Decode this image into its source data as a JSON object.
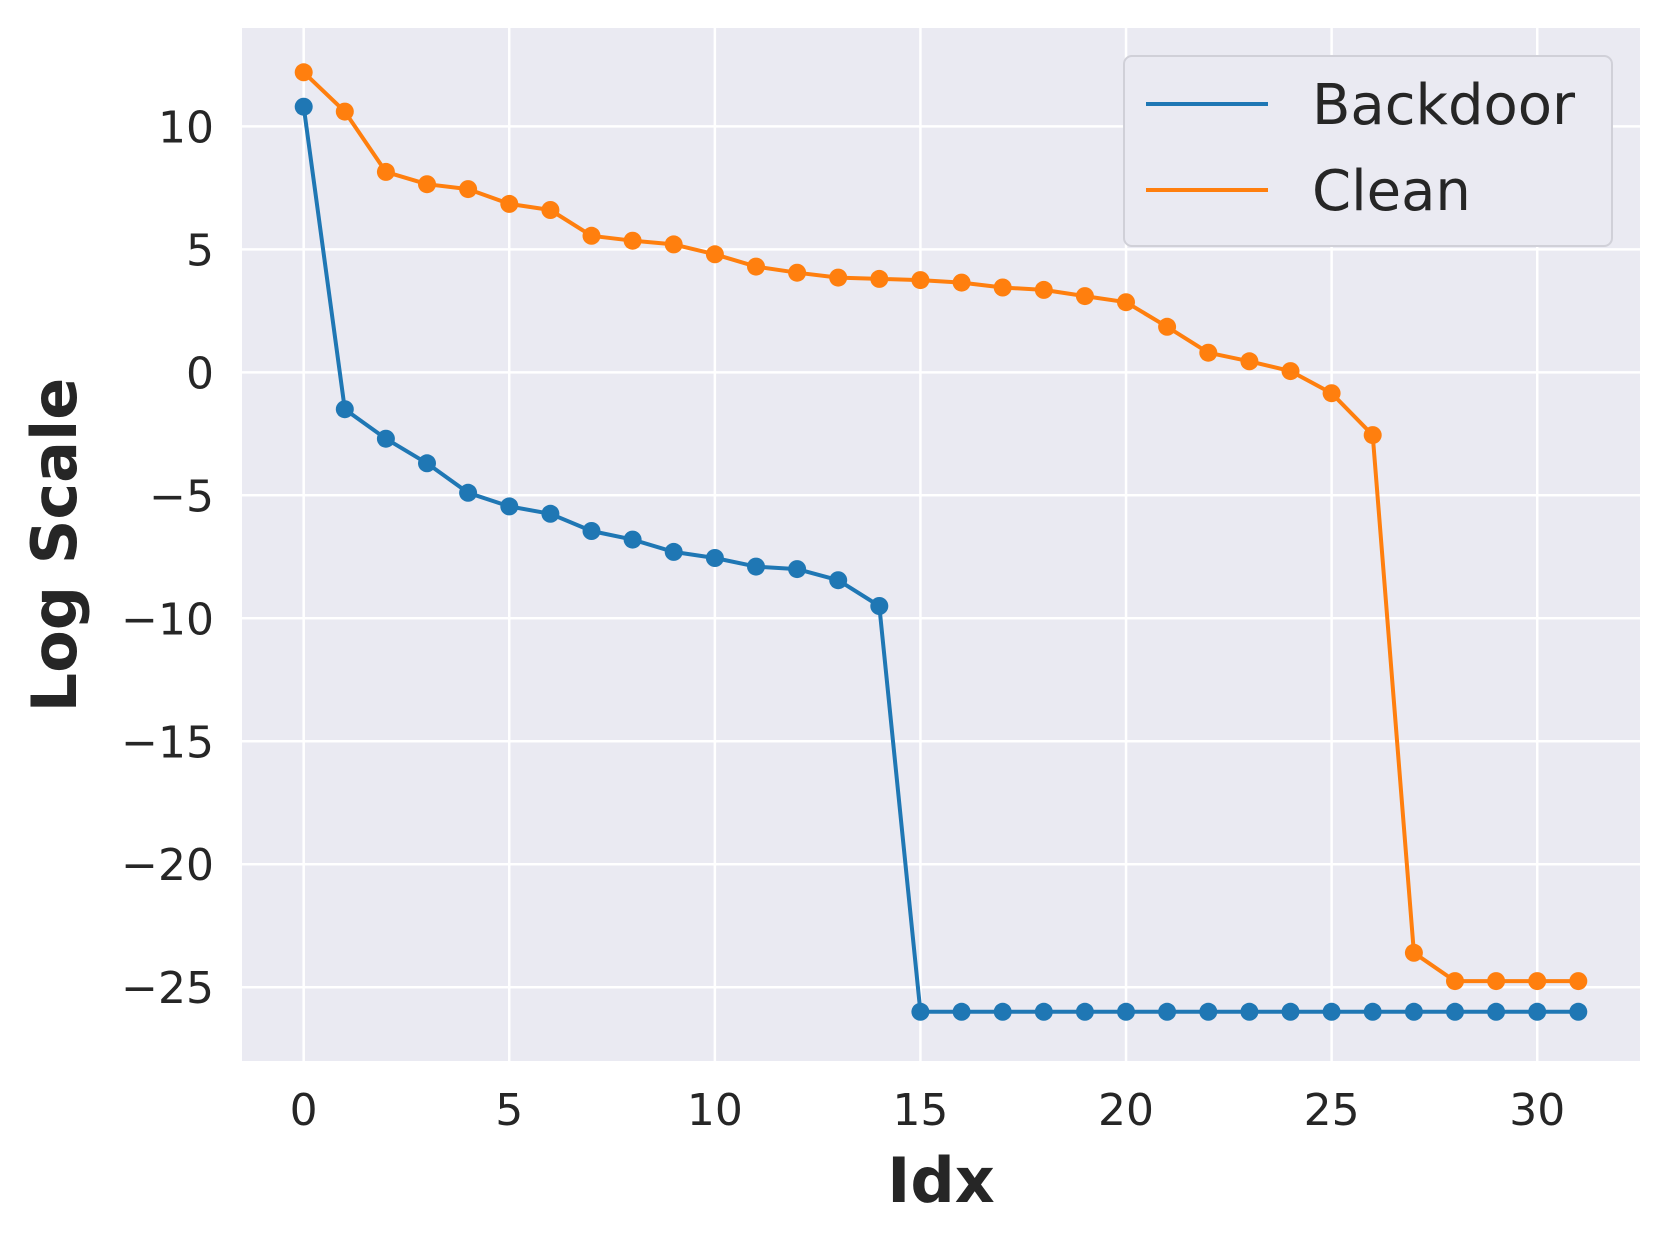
{
  "chart_data": {
    "type": "line",
    "title": "",
    "xlabel": "Idx",
    "ylabel": "Log Scale",
    "xlim": [
      -1.5,
      32.5
    ],
    "ylim": [
      -28,
      14
    ],
    "x_ticks": [
      0,
      5,
      10,
      15,
      20,
      25,
      30
    ],
    "y_ticks": [
      10,
      5,
      0,
      -5,
      -10,
      -15,
      -20,
      -25
    ],
    "x_tick_labels": [
      "0",
      "5",
      "10",
      "15",
      "20",
      "25",
      "30"
    ],
    "y_tick_labels": [
      "10",
      "5",
      "0",
      "−5",
      "−10",
      "−15",
      "−20",
      "−25"
    ],
    "grid": true,
    "legend_position": "top-right",
    "colors": {
      "background": "#EAEAF2",
      "grid": "#FFFFFF",
      "backdoor": "#1F77B4",
      "clean": "#FF7F0E"
    },
    "series": [
      {
        "name": "Backdoor",
        "color": "#1F77B4",
        "x": [
          0,
          1,
          2,
          3,
          4,
          5,
          6,
          7,
          8,
          9,
          10,
          11,
          12,
          13,
          14,
          15,
          16,
          17,
          18,
          19,
          20,
          21,
          22,
          23,
          24,
          25,
          26,
          27,
          28,
          29,
          30,
          31
        ],
        "values": [
          10.8,
          -1.5,
          -2.7,
          -3.7,
          -4.9,
          -5.45,
          -5.75,
          -6.45,
          -6.8,
          -7.3,
          -7.55,
          -7.9,
          -8.0,
          -8.45,
          -9.5,
          -26.0,
          -26.0,
          -26.0,
          -26.0,
          -26.0,
          -26.0,
          -26.0,
          -26.0,
          -26.0,
          -26.0,
          -26.0,
          -26.0,
          -26.0,
          -26.0,
          -26.0,
          -26.0,
          -26.0
        ]
      },
      {
        "name": "Clean",
        "color": "#FF7F0E",
        "x": [
          0,
          1,
          2,
          3,
          4,
          5,
          6,
          7,
          8,
          9,
          10,
          11,
          12,
          13,
          14,
          15,
          16,
          17,
          18,
          19,
          20,
          21,
          22,
          23,
          24,
          25,
          26,
          27,
          28,
          29,
          30,
          31
        ],
        "values": [
          12.2,
          10.6,
          8.15,
          7.65,
          7.45,
          6.85,
          6.6,
          5.55,
          5.35,
          5.2,
          4.8,
          4.3,
          4.05,
          3.85,
          3.8,
          3.75,
          3.65,
          3.45,
          3.35,
          3.1,
          2.85,
          1.85,
          0.8,
          0.45,
          0.05,
          -0.85,
          -2.55,
          -23.6,
          -24.75,
          -24.75,
          -24.75,
          -24.75
        ]
      }
    ]
  }
}
